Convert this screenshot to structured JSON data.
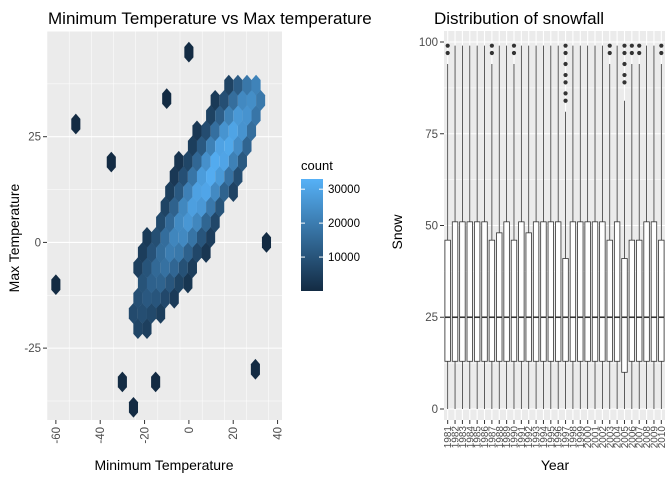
{
  "chart_data": [
    {
      "type": "heatmap",
      "subtype": "hexbin",
      "title": "Minimum Temperature vs Max temperature",
      "xlabel": "Minimum Temperature",
      "ylabel": "Max Temperature",
      "xlim": [
        -64,
        42
      ],
      "ylim": [
        -42,
        50
      ],
      "xticks": [
        -60,
        -40,
        -20,
        0,
        20,
        40
      ],
      "yticks": [
        -25,
        0,
        25
      ],
      "grid": true,
      "legend": {
        "title": "count",
        "placement": "right",
        "range": [
          1,
          33000
        ],
        "ticks": [
          10000,
          20000,
          30000
        ],
        "color_low": "#132B43",
        "color_high": "#56B1F7"
      },
      "density_model": {
        "slope": 0.92,
        "intercept": 7,
        "spread": 7.5,
        "x_center": 3,
        "x_spread": 22,
        "peak": 32000
      },
      "outlier_bins": [
        {
          "x": -60,
          "y": -10,
          "count": 1
        },
        {
          "x": -51,
          "y": 28,
          "count": 1
        },
        {
          "x": 0,
          "y": 45,
          "count": 1
        },
        {
          "x": -25,
          "y": -39,
          "count": 2
        },
        {
          "x": -30,
          "y": -33,
          "count": 2
        },
        {
          "x": -15,
          "y": -33,
          "count": 1
        },
        {
          "x": -35,
          "y": 19,
          "count": 1
        },
        {
          "x": -10,
          "y": 34,
          "count": 2
        },
        {
          "x": 35,
          "y": 0,
          "count": 1
        },
        {
          "x": 30,
          "y": -30,
          "count": 1
        }
      ]
    },
    {
      "type": "box",
      "title": "Distribution of snowfall",
      "xlabel": "Year",
      "ylabel": "Snow",
      "ylim": [
        -3,
        103
      ],
      "yticks": [
        0,
        25,
        50,
        75,
        100
      ],
      "grid": true,
      "categories": [
        "1981",
        "1982",
        "1983",
        "1984",
        "1985",
        "1986",
        "1987",
        "1988",
        "1989",
        "1990",
        "1991",
        "1992",
        "1993",
        "1994",
        "1995",
        "1996",
        "1997",
        "1998",
        "1999",
        "2000",
        "2001",
        "2002",
        "2003",
        "2004",
        "2005",
        "2006",
        "2007",
        "2008",
        "2009",
        "2010"
      ],
      "boxes": [
        {
          "q1": 13,
          "median": 25,
          "q3": 46,
          "lower": 0,
          "upper": 94,
          "outliers": [
            97,
            99
          ]
        },
        {
          "q1": 13,
          "median": 25,
          "q3": 51,
          "lower": 0,
          "upper": 99,
          "outliers": []
        },
        {
          "q1": 13,
          "median": 25,
          "q3": 51,
          "lower": 0,
          "upper": 99,
          "outliers": []
        },
        {
          "q1": 13,
          "median": 25,
          "q3": 51,
          "lower": 0,
          "upper": 99,
          "outliers": []
        },
        {
          "q1": 13,
          "median": 25,
          "q3": 51,
          "lower": 0,
          "upper": 99,
          "outliers": []
        },
        {
          "q1": 13,
          "median": 25,
          "q3": 51,
          "lower": 0,
          "upper": 99,
          "outliers": []
        },
        {
          "q1": 13,
          "median": 25,
          "q3": 46,
          "lower": 0,
          "upper": 94,
          "outliers": [
            97,
            99
          ]
        },
        {
          "q1": 13,
          "median": 25,
          "q3": 48,
          "lower": 0,
          "upper": 99,
          "outliers": []
        },
        {
          "q1": 13,
          "median": 25,
          "q3": 51,
          "lower": 0,
          "upper": 99,
          "outliers": []
        },
        {
          "q1": 13,
          "median": 25,
          "q3": 46,
          "lower": 0,
          "upper": 94,
          "outliers": [
            97,
            99
          ]
        },
        {
          "q1": 13,
          "median": 25,
          "q3": 51,
          "lower": 0,
          "upper": 99,
          "outliers": []
        },
        {
          "q1": 13,
          "median": 25,
          "q3": 48,
          "lower": 0,
          "upper": 99,
          "outliers": []
        },
        {
          "q1": 13,
          "median": 25,
          "q3": 51,
          "lower": 0,
          "upper": 99,
          "outliers": []
        },
        {
          "q1": 13,
          "median": 25,
          "q3": 51,
          "lower": 0,
          "upper": 99,
          "outliers": []
        },
        {
          "q1": 13,
          "median": 25,
          "q3": 51,
          "lower": 0,
          "upper": 99,
          "outliers": []
        },
        {
          "q1": 13,
          "median": 25,
          "q3": 51,
          "lower": 0,
          "upper": 99,
          "outliers": []
        },
        {
          "q1": 13,
          "median": 25,
          "q3": 41,
          "lower": 0,
          "upper": 81,
          "outliers": [
            84,
            86,
            89,
            91,
            94,
            97,
            99
          ]
        },
        {
          "q1": 13,
          "median": 25,
          "q3": 51,
          "lower": 0,
          "upper": 99,
          "outliers": []
        },
        {
          "q1": 13,
          "median": 25,
          "q3": 51,
          "lower": 0,
          "upper": 99,
          "outliers": []
        },
        {
          "q1": 13,
          "median": 25,
          "q3": 51,
          "lower": 0,
          "upper": 99,
          "outliers": []
        },
        {
          "q1": 13,
          "median": 25,
          "q3": 51,
          "lower": 0,
          "upper": 99,
          "outliers": []
        },
        {
          "q1": 13,
          "median": 25,
          "q3": 51,
          "lower": 0,
          "upper": 99,
          "outliers": []
        },
        {
          "q1": 13,
          "median": 25,
          "q3": 46,
          "lower": 0,
          "upper": 94,
          "outliers": [
            97,
            99
          ]
        },
        {
          "q1": 13,
          "median": 25,
          "q3": 51,
          "lower": 0,
          "upper": 99,
          "outliers": []
        },
        {
          "q1": 10,
          "median": 25,
          "q3": 41,
          "lower": 0,
          "upper": 84,
          "outliers": [
            89,
            91,
            94,
            97,
            99
          ]
        },
        {
          "q1": 13,
          "median": 25,
          "q3": 46,
          "lower": 0,
          "upper": 94,
          "outliers": [
            97,
            99
          ]
        },
        {
          "q1": 13,
          "median": 25,
          "q3": 46,
          "lower": 0,
          "upper": 94,
          "outliers": [
            97,
            99
          ]
        },
        {
          "q1": 13,
          "median": 25,
          "q3": 51,
          "lower": 0,
          "upper": 99,
          "outliers": []
        },
        {
          "q1": 13,
          "median": 25,
          "q3": 51,
          "lower": 0,
          "upper": 99,
          "outliers": []
        },
        {
          "q1": 13,
          "median": 25,
          "q3": 46,
          "lower": 0,
          "upper": 94,
          "outliers": [
            97,
            99
          ]
        }
      ]
    }
  ],
  "colors": {
    "panel_background": "#EBEBEB",
    "grid_major": "#FFFFFF",
    "box_fill": "#FFFFFF",
    "box_line": "#333333"
  }
}
